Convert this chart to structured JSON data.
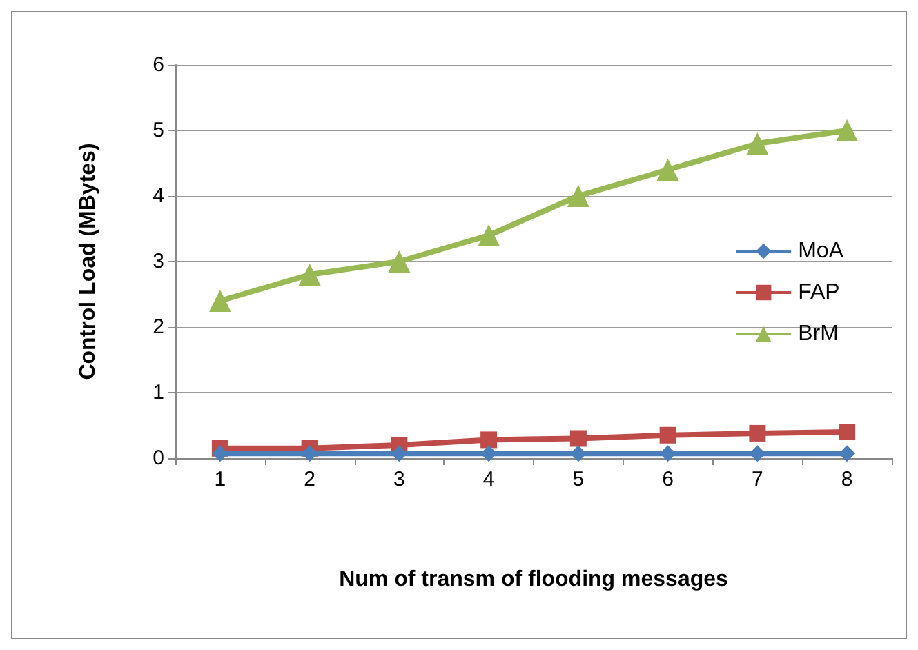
{
  "chart_data": {
    "type": "line",
    "xlabel": "Num of transm of flooding messages",
    "ylabel": "Control Load (MBytes)",
    "categories": [
      "1",
      "2",
      "3",
      "4",
      "5",
      "6",
      "7",
      "8"
    ],
    "series": [
      {
        "name": "MoA",
        "color": "#4a7ebb",
        "marker": "diamond",
        "values": [
          0.07,
          0.07,
          0.07,
          0.07,
          0.07,
          0.07,
          0.07,
          0.07
        ]
      },
      {
        "name": "FAP",
        "color": "#be4b48",
        "marker": "square",
        "values": [
          0.15,
          0.15,
          0.2,
          0.28,
          0.3,
          0.35,
          0.38,
          0.4
        ]
      },
      {
        "name": "BrM",
        "color": "#98b954",
        "marker": "triangle",
        "values": [
          2.4,
          2.8,
          3.0,
          3.4,
          4.0,
          4.4,
          4.8,
          5.0
        ]
      }
    ],
    "ylim": [
      0,
      6
    ],
    "yticks": [
      0,
      1,
      2,
      3,
      4,
      5,
      6
    ],
    "grid": "y",
    "legend": "right"
  }
}
